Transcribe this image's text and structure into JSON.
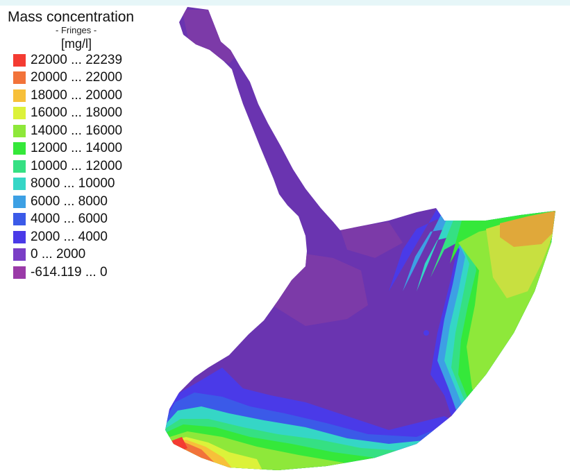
{
  "legend": {
    "title": "Mass concentration",
    "subtitle": "- Fringes -",
    "unit": "[mg/l]",
    "items": [
      {
        "label": "22000 ... 22239",
        "color": "#f43b32"
      },
      {
        "label": "20000 ... 22000",
        "color": "#f2733a"
      },
      {
        "label": "18000 ... 20000",
        "color": "#f7c03a"
      },
      {
        "label": "16000 ... 18000",
        "color": "#dcf23a"
      },
      {
        "label": "14000 ... 16000",
        "color": "#8ee83a"
      },
      {
        "label": "12000 ... 14000",
        "color": "#35e83a"
      },
      {
        "label": "10000 ... 12000",
        "color": "#35e083"
      },
      {
        "label": "8000 ... 10000",
        "color": "#35d6c6"
      },
      {
        "label": "6000 ... 8000",
        "color": "#3da0e4"
      },
      {
        "label": "4000 ... 6000",
        "color": "#3b5ae8"
      },
      {
        "label": "2000 ... 4000",
        "color": "#4a3ae8"
      },
      {
        "label": "0 ... 2000",
        "color": "#7a3ec6"
      },
      {
        "label": "-614.119 ... 0",
        "color": "#9a3aa8"
      }
    ]
  }
}
